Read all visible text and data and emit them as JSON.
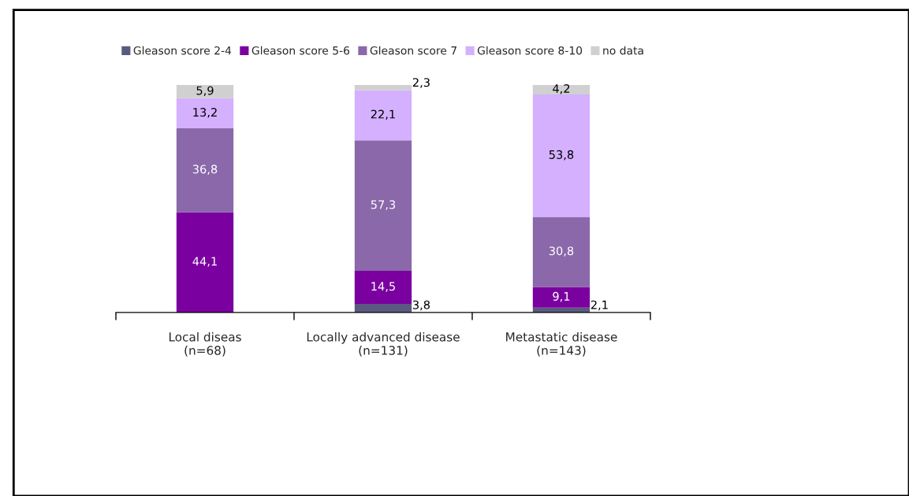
{
  "chart_data": {
    "type": "bar",
    "stacked": true,
    "categories": [
      "Local diseas\n(n=68)",
      "Locally advanced disease\n(n=131)",
      "Metastatic disease\n(n=143)"
    ],
    "series": [
      {
        "name": "Gleason score 2-4",
        "color": "#5a5a80",
        "values": [
          null,
          3.8,
          2.1
        ],
        "value_labels": [
          null,
          "3,8",
          "2,1"
        ]
      },
      {
        "name": "Gleason score 5-6",
        "color": "#7a00a0",
        "values": [
          44.1,
          14.5,
          9.1
        ],
        "value_labels": [
          "44,1",
          "14,5",
          "9,1"
        ]
      },
      {
        "name": "Gleason score 7",
        "color": "#8a68aa",
        "values": [
          36.8,
          57.3,
          30.8
        ],
        "value_labels": [
          "36,8",
          "57,3",
          "30,8"
        ]
      },
      {
        "name": "Gleason score 8-10",
        "color": "#d4b0ff",
        "values": [
          13.2,
          22.1,
          53.8
        ],
        "value_labels": [
          "13,2",
          "22,1",
          "53,8"
        ]
      },
      {
        "name": "no data",
        "color": "#d0d0d0",
        "values": [
          5.9,
          2.3,
          4.2
        ],
        "value_labels": [
          "5,9",
          "2,3",
          "4,2"
        ]
      }
    ],
    "ylim": [
      0,
      100
    ],
    "tick_labels": "x",
    "legend": "top"
  }
}
